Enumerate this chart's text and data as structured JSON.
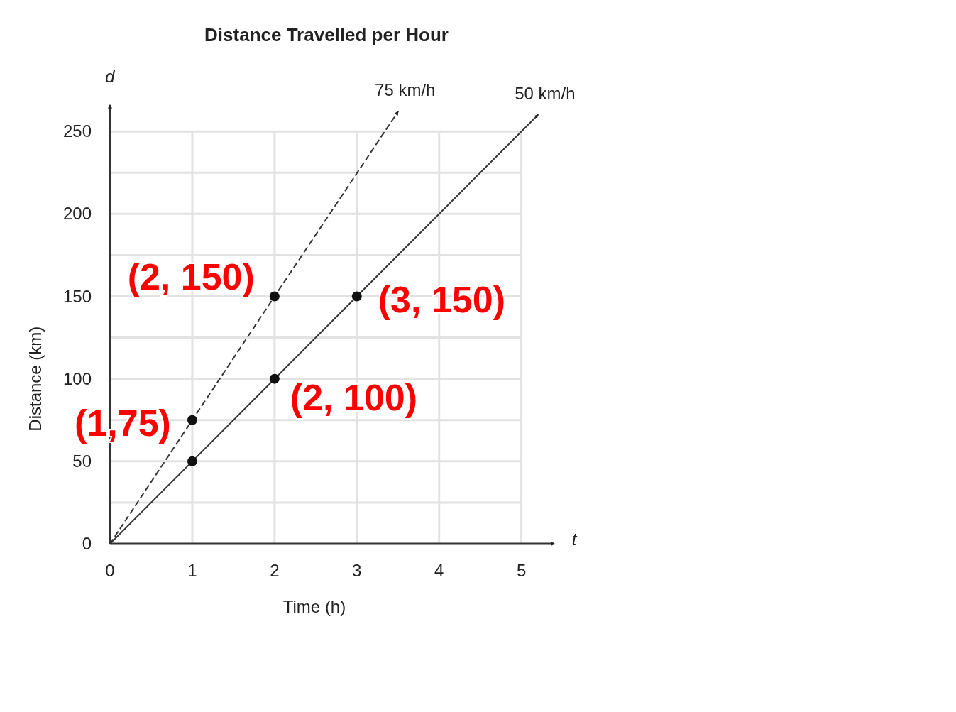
{
  "chart_data": {
    "type": "line",
    "title": "Distance Travelled per Hour",
    "xlabel": "Time (h)",
    "ylabel": "Distance (km)",
    "xlim": [
      0,
      5.4
    ],
    "ylim": [
      0,
      266
    ],
    "xticks": [
      0,
      1,
      2,
      3,
      4,
      5
    ],
    "yticks": [
      0,
      {
        "value": 25,
        "label": null
      },
      50,
      {
        "value": 75,
        "label": null
      },
      100,
      {
        "value": 125,
        "label": null
      },
      150,
      {
        "value": 175,
        "label": null
      },
      200,
      {
        "value": 225,
        "label": null
      },
      250
    ],
    "grid": true,
    "series": [
      {
        "name": "75 km/h",
        "color": "#333333",
        "line_style": "dashed",
        "x": [
          0,
          1,
          2,
          3.5
        ],
        "values": [
          0,
          75,
          150,
          262
        ]
      },
      {
        "name": "50 km/h",
        "color": "#333333",
        "line_style": "solid",
        "x": [
          0,
          1,
          2,
          3,
          5.2
        ],
        "values": [
          0,
          50,
          100,
          150,
          260
        ]
      },
      {
        "type": "scatter",
        "color": "#111111",
        "marker": "circle",
        "x": [
          1,
          2,
          1,
          2,
          3
        ],
        "values": [
          75,
          150,
          50,
          100,
          150
        ]
      }
    ],
    "annotations": [
      "d",
      "t",
      {
        "text": "(2, 150)",
        "x": 2,
        "y": 150
      },
      {
        "text": "(3, 150)",
        "x": 3,
        "y": 150
      },
      {
        "text": "(2, 100)",
        "x": 2,
        "y": 100
      },
      {
        "text": "(1,75)",
        "x": 1,
        "y": 75
      }
    ]
  }
}
